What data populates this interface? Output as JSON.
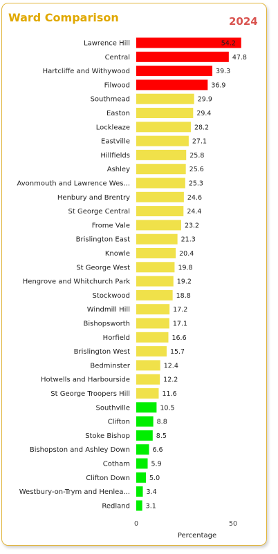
{
  "title": "Ward Comparison",
  "year": "2024",
  "chart_data": {
    "type": "bar",
    "orientation": "horizontal",
    "title": "Ward Comparison",
    "xlabel": "Percentage",
    "ylabel": "",
    "xlim": [
      0,
      55
    ],
    "xticks": [
      "0",
      "50"
    ],
    "grid": false,
    "categories": [
      "Lawrence Hill",
      "Central",
      "Hartcliffe and Withywood",
      "Filwood",
      "Southmead",
      "Easton",
      "Lockleaze",
      "Eastville",
      "Hillfields",
      "Ashley",
      "Avonmouth and Lawrence Wes...",
      "Henbury and Brentry",
      "St George Central",
      "Frome Vale",
      "Brislington East",
      "Knowle",
      "St George West",
      "Hengrove and Whitchurch Park",
      "Stockwood",
      "Windmill Hill",
      "Bishopsworth",
      "Horfield",
      "Brislington West",
      "Bedminster",
      "Hotwells and Harbourside",
      "St George Troopers Hill",
      "Southville",
      "Clifton",
      "Stoke Bishop",
      "Bishopston and Ashley Down",
      "Cotham",
      "Clifton Down",
      "Westbury-on-Trym and Henlea...",
      "Redland"
    ],
    "values": [
      54.2,
      47.8,
      39.3,
      36.9,
      29.9,
      29.4,
      28.2,
      27.1,
      25.8,
      25.6,
      25.3,
      24.6,
      24.4,
      23.2,
      21.3,
      20.4,
      19.8,
      19.2,
      18.8,
      17.2,
      17.1,
      16.6,
      15.7,
      12.4,
      12.2,
      11.6,
      10.5,
      8.8,
      8.5,
      6.6,
      5.9,
      5.0,
      3.4,
      3.1
    ],
    "value_labels": [
      "54.2",
      "47.8",
      "39.3",
      "36.9",
      "29.9",
      "29.4",
      "28.2",
      "27.1",
      "25.8",
      "25.6",
      "25.3",
      "24.6",
      "24.4",
      "23.2",
      "21.3",
      "20.4",
      "19.8",
      "19.2",
      "18.8",
      "17.2",
      "17.1",
      "16.6",
      "15.7",
      "12.4",
      "12.2",
      "11.6",
      "10.5",
      "8.8",
      "8.5",
      "6.6",
      "5.9",
      "5.0",
      "3.4",
      "3.1"
    ],
    "bar_colors": [
      "#ff0000",
      "#ff0000",
      "#ff0000",
      "#ff0000",
      "#f0e14a",
      "#f0e14a",
      "#f0e14a",
      "#f0e14a",
      "#f0e14a",
      "#f0e14a",
      "#f0e14a",
      "#f0e14a",
      "#f0e14a",
      "#f0e14a",
      "#f0e14a",
      "#f0e14a",
      "#f0e14a",
      "#f0e14a",
      "#f0e14a",
      "#f0e14a",
      "#f0e14a",
      "#f0e14a",
      "#f0e14a",
      "#f0e14a",
      "#f0e14a",
      "#f0e14a",
      "#00ee00",
      "#00ee00",
      "#00ee00",
      "#00ee00",
      "#00ee00",
      "#00ee00",
      "#00ee00",
      "#00ee00"
    ]
  }
}
